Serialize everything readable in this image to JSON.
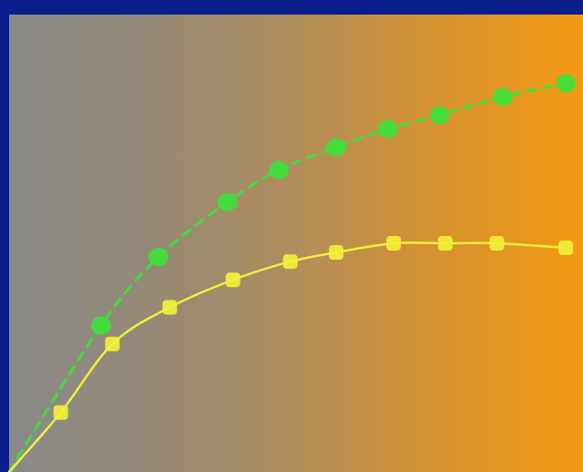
{
  "chart_data": {
    "type": "line",
    "title": "",
    "xlabel": "",
    "ylabel": "",
    "grid": false,
    "legend": "none",
    "x_range": [
      0,
      10
    ],
    "y_range": [
      0,
      10
    ],
    "series": [
      {
        "color": "#3ee03a",
        "marker": "circle",
        "line_style": "dashed",
        "points": [
          {
            "x": 0.0,
            "y": 0.0
          },
          {
            "x": 1.6,
            "y": 3.2
          },
          {
            "x": 2.6,
            "y": 4.7
          },
          {
            "x": 3.8,
            "y": 5.9
          },
          {
            "x": 4.7,
            "y": 6.6
          },
          {
            "x": 5.7,
            "y": 7.1
          },
          {
            "x": 6.6,
            "y": 7.5
          },
          {
            "x": 7.5,
            "y": 7.8
          },
          {
            "x": 8.6,
            "y": 8.2
          },
          {
            "x": 9.7,
            "y": 8.5
          }
        ]
      },
      {
        "color": "#f2f03a",
        "marker": "square",
        "line_style": "solid",
        "points": [
          {
            "x": 0.0,
            "y": 0.0
          },
          {
            "x": 0.9,
            "y": 1.3
          },
          {
            "x": 1.8,
            "y": 2.8
          },
          {
            "x": 2.8,
            "y": 3.6
          },
          {
            "x": 3.9,
            "y": 4.2
          },
          {
            "x": 4.9,
            "y": 4.6
          },
          {
            "x": 5.7,
            "y": 4.8
          },
          {
            "x": 6.7,
            "y": 5.0
          },
          {
            "x": 7.6,
            "y": 5.0
          },
          {
            "x": 8.5,
            "y": 5.0
          },
          {
            "x": 9.7,
            "y": 4.9
          }
        ]
      }
    ]
  }
}
